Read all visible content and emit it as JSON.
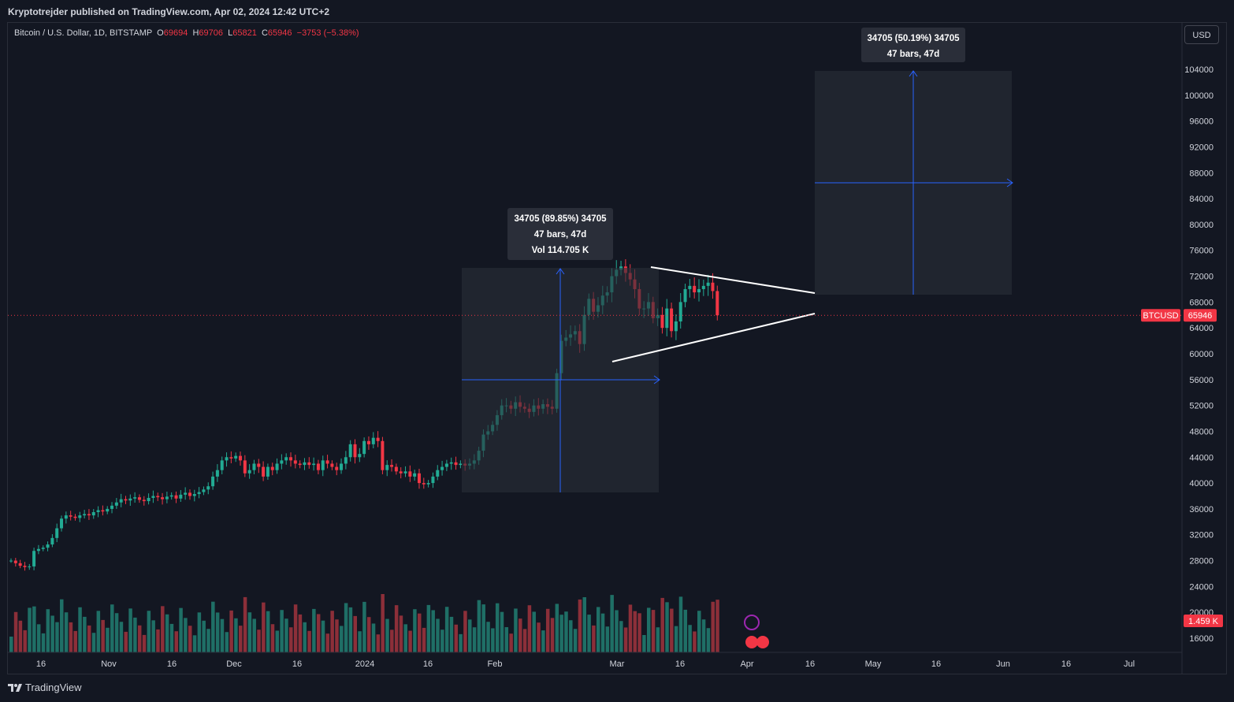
{
  "header": {
    "publisher_line": "Kryptotrejder published on TradingView.com, Apr 02, 2024 12:42 UTC+2"
  },
  "legend": {
    "symbol": "Bitcoin / U.S. Dollar, 1D, BITSTAMP",
    "o_label": "O",
    "o_value": "69694",
    "h_label": "H",
    "h_value": "69706",
    "l_label": "L",
    "l_value": "65821",
    "c_label": "C",
    "c_value": "65946",
    "change": "−3753 (−5.38%)"
  },
  "price_scale": {
    "currency": "USD",
    "ticks": [
      "104000",
      "100000",
      "96000",
      "92000",
      "88000",
      "84000",
      "80000",
      "76000",
      "72000",
      "68000",
      "64000",
      "60000",
      "56000",
      "52000",
      "48000",
      "44000",
      "40000",
      "36000",
      "32000",
      "28000",
      "24000",
      "20000",
      "16000"
    ],
    "symbol_badge": "BTCUSD",
    "last_price_badge": "65946",
    "volume_badge": "1.459 K"
  },
  "time_scale": {
    "ticks": [
      "16",
      "Nov",
      "16",
      "Dec",
      "16",
      "2024",
      "16",
      "Feb",
      "Mar",
      "16",
      "Apr",
      "16",
      "May",
      "16",
      "Jun",
      "16",
      "Jul"
    ]
  },
  "measure_tool_1": {
    "line1": "34705 (89.85%) 34705",
    "line2": "47 bars, 47d",
    "line3": "Vol 114.705 K"
  },
  "measure_tool_2": {
    "line1": "34705 (50.19%) 34705",
    "line2": "47 bars, 47d"
  },
  "footer": {
    "brand": "TradingView"
  },
  "colors": {
    "up": "#22ab94",
    "down": "#f23645",
    "volume_up": "#1f6f66",
    "volume_down": "#8c2f39",
    "measure": "#2962ff",
    "background": "#131722"
  },
  "chart_data": {
    "type": "candlestick",
    "series": [
      {
        "name": "BTCUSD",
        "approx_daily_closes": [
          28000,
          27600,
          27200,
          27000,
          27100,
          29500,
          29800,
          30000,
          30500,
          31500,
          33000,
          34500,
          35000,
          34800,
          34600,
          35000,
          35200,
          35000,
          35500,
          35800,
          35600,
          36000,
          36500,
          37000,
          37500,
          37300,
          37600,
          37800,
          37400,
          37200,
          37700,
          38000,
          37800,
          37500,
          37900,
          38100,
          37600,
          38200,
          38500,
          38000,
          38300,
          38600,
          39000,
          39500,
          41000,
          42000,
          43500,
          44000,
          43800,
          44200,
          43500,
          41500,
          42000,
          43000,
          42500,
          41000,
          42500,
          42000,
          43000,
          43500,
          44000,
          43500,
          43000,
          42800,
          43200,
          42800,
          43000,
          42000,
          43500,
          43000,
          42500,
          42000,
          43000,
          44000,
          46000,
          44000,
          44500,
          46500,
          46000,
          47000,
          46500,
          42000,
          42800,
          42500,
          41800,
          41500,
          41800,
          41000,
          41500,
          40000,
          39800,
          40000,
          41000,
          42000,
          42500,
          43000,
          43200,
          42800,
          43000,
          42700,
          43000,
          43500,
          45000,
          47500,
          48000,
          49000,
          50500,
          52000,
          52000,
          51500,
          52500,
          51800,
          51500,
          51000,
          52000,
          51500,
          52200,
          51800,
          51500,
          57000,
          62000,
          62500,
          63000,
          63500,
          61500,
          66000,
          68500,
          66500,
          67500,
          69000,
          69500,
          72000,
          73000,
          73500,
          72500,
          71500,
          70000,
          67000,
          67000,
          68000,
          65500,
          66000,
          64000,
          67000,
          63500,
          65000,
          68000,
          70000,
          70500,
          69500,
          70000,
          70500,
          71000,
          69700,
          65946
        ]
      }
    ],
    "x_range": [
      "Oct 2023",
      "Jul 2024"
    ],
    "y_range": [
      14000,
      106000
    ],
    "triangle_pattern": true
  }
}
